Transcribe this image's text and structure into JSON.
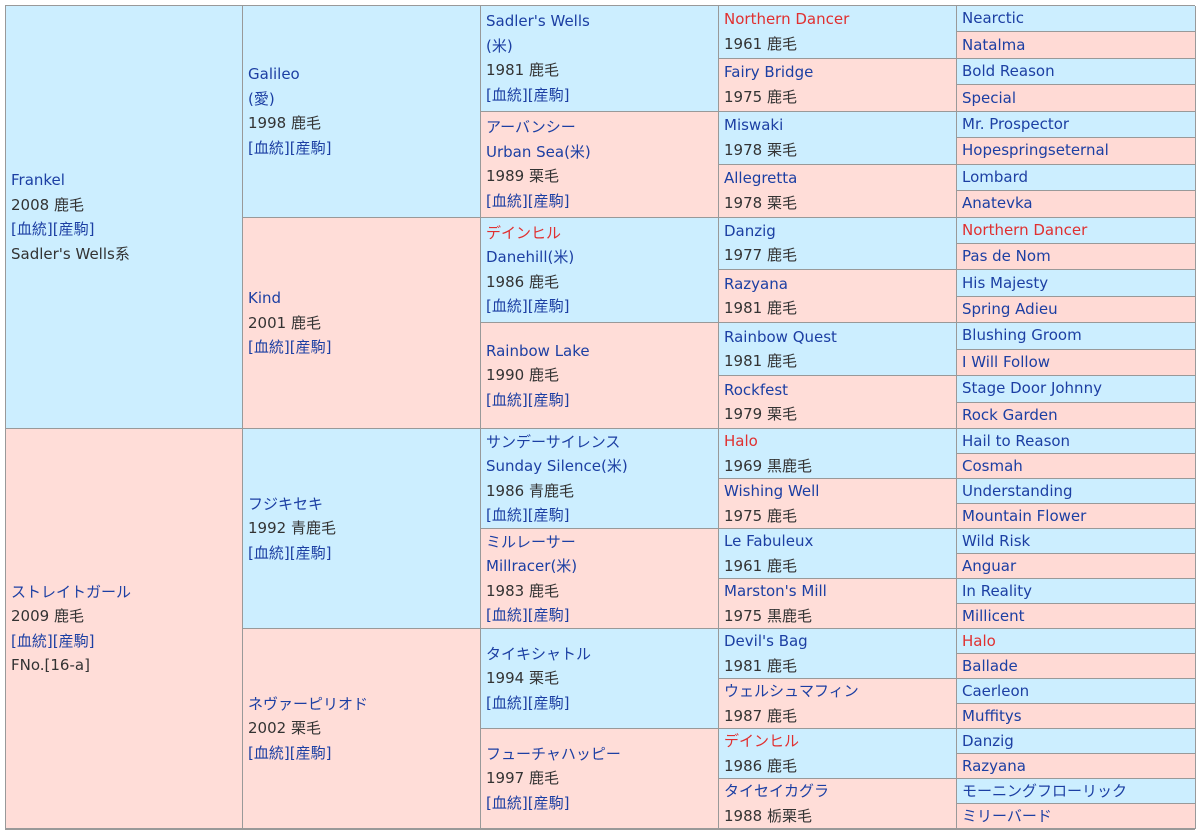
{
  "pedigree": {
    "g1": [
      {
        "name": "Frankel",
        "year": "2008",
        "color": "鹿毛",
        "links": true,
        "extra": "Sadler's Wells系"
      },
      {
        "name": "ストレイトガール",
        "year": "2009",
        "color": "鹿毛",
        "links": true,
        "extra": "FNo.[16-a]"
      }
    ],
    "g2": [
      {
        "name": "Galileo",
        "alt": "(愛)",
        "year": "1998",
        "color": "鹿毛",
        "links": true
      },
      {
        "name": "Kind",
        "year": "2001",
        "color": "鹿毛",
        "links": true
      },
      {
        "name": "フジキセキ",
        "year": "1992",
        "color": "青鹿毛",
        "links": true
      },
      {
        "name": "ネヴァーピリオド",
        "year": "2002",
        "color": "栗毛",
        "links": true
      }
    ],
    "g3": [
      {
        "name": "Sadler's Wells",
        "alt": "(米)",
        "year": "1981",
        "color": "鹿毛",
        "links": true
      },
      {
        "name": "アーバンシー",
        "alt": "Urban Sea(米)",
        "year": "1989",
        "color": "栗毛",
        "links": true
      },
      {
        "name": "デインヒル",
        "alt": "Danehill(米)",
        "year": "1986",
        "color": "鹿毛",
        "links": true
      },
      {
        "name": "Rainbow Lake",
        "year": "1990",
        "color": "鹿毛",
        "links": true
      },
      {
        "name": "サンデーサイレンス",
        "alt": "Sunday Silence(米)",
        "year": "1986",
        "color": "青鹿毛",
        "links": true
      },
      {
        "name": "ミルレーサー",
        "alt": "Millracer(米)",
        "year": "1983",
        "color": "鹿毛",
        "links": true
      },
      {
        "name": "タイキシャトル",
        "year": "1994",
        "color": "栗毛",
        "links": true
      },
      {
        "name": "フューチャハッピー",
        "year": "1997",
        "color": "鹿毛",
        "links": true
      }
    ],
    "g4": [
      {
        "name": "Northern Dancer",
        "year": "1961",
        "color": "鹿毛"
      },
      {
        "name": "Fairy Bridge",
        "year": "1975",
        "color": "鹿毛"
      },
      {
        "name": "Miswaki",
        "year": "1978",
        "color": "栗毛"
      },
      {
        "name": "Allegretta",
        "year": "1978",
        "color": "栗毛"
      },
      {
        "name": "Danzig",
        "year": "1977",
        "color": "鹿毛"
      },
      {
        "name": "Razyana",
        "year": "1981",
        "color": "鹿毛"
      },
      {
        "name": "Rainbow Quest",
        "year": "1981",
        "color": "鹿毛"
      },
      {
        "name": "Rockfest",
        "year": "1979",
        "color": "栗毛"
      },
      {
        "name": "Halo",
        "year": "1969",
        "color": "黒鹿毛"
      },
      {
        "name": "Wishing Well",
        "year": "1975",
        "color": "鹿毛"
      },
      {
        "name": "Le Fabuleux",
        "year": "1961",
        "color": "鹿毛"
      },
      {
        "name": "Marston's Mill",
        "year": "1975",
        "color": "黒鹿毛"
      },
      {
        "name": "Devil's Bag",
        "year": "1981",
        "color": "鹿毛"
      },
      {
        "name": "ウェルシュマフィン",
        "year": "1987",
        "color": "鹿毛"
      },
      {
        "name": "デインヒル",
        "year": "1986",
        "color": "鹿毛"
      },
      {
        "name": "タイセイカグラ",
        "year": "1988",
        "color": "栃栗毛"
      }
    ],
    "g5": [
      "Nearctic",
      "Natalma",
      "Bold Reason",
      "Special",
      "Mr. Prospector",
      "Hopespringseternal",
      "Lombard",
      "Anatevka",
      "Northern Dancer",
      "Pas de Nom",
      "His Majesty",
      "Spring Adieu",
      "Blushing Groom",
      "I Will Follow",
      "Stage Door Johnny",
      "Rock Garden",
      "Hail to Reason",
      "Cosmah",
      "Understanding",
      "Mountain Flower",
      "Wild Risk",
      "Anguar",
      "In Reality",
      "Millicent",
      "Halo",
      "Ballade",
      "Caerleon",
      "Muffitys",
      "Danzig",
      "Razyana",
      "モーニングフローリック",
      "ミリーバード"
    ],
    "link_labels": {
      "bloodline": "[血統]",
      "offspring": "[産駒]"
    },
    "colors": {
      "male_bg": "#cceeff",
      "female_bg": "#ffddd8",
      "link": "#1c3fa3",
      "inbreed": "#e03030"
    }
  }
}
